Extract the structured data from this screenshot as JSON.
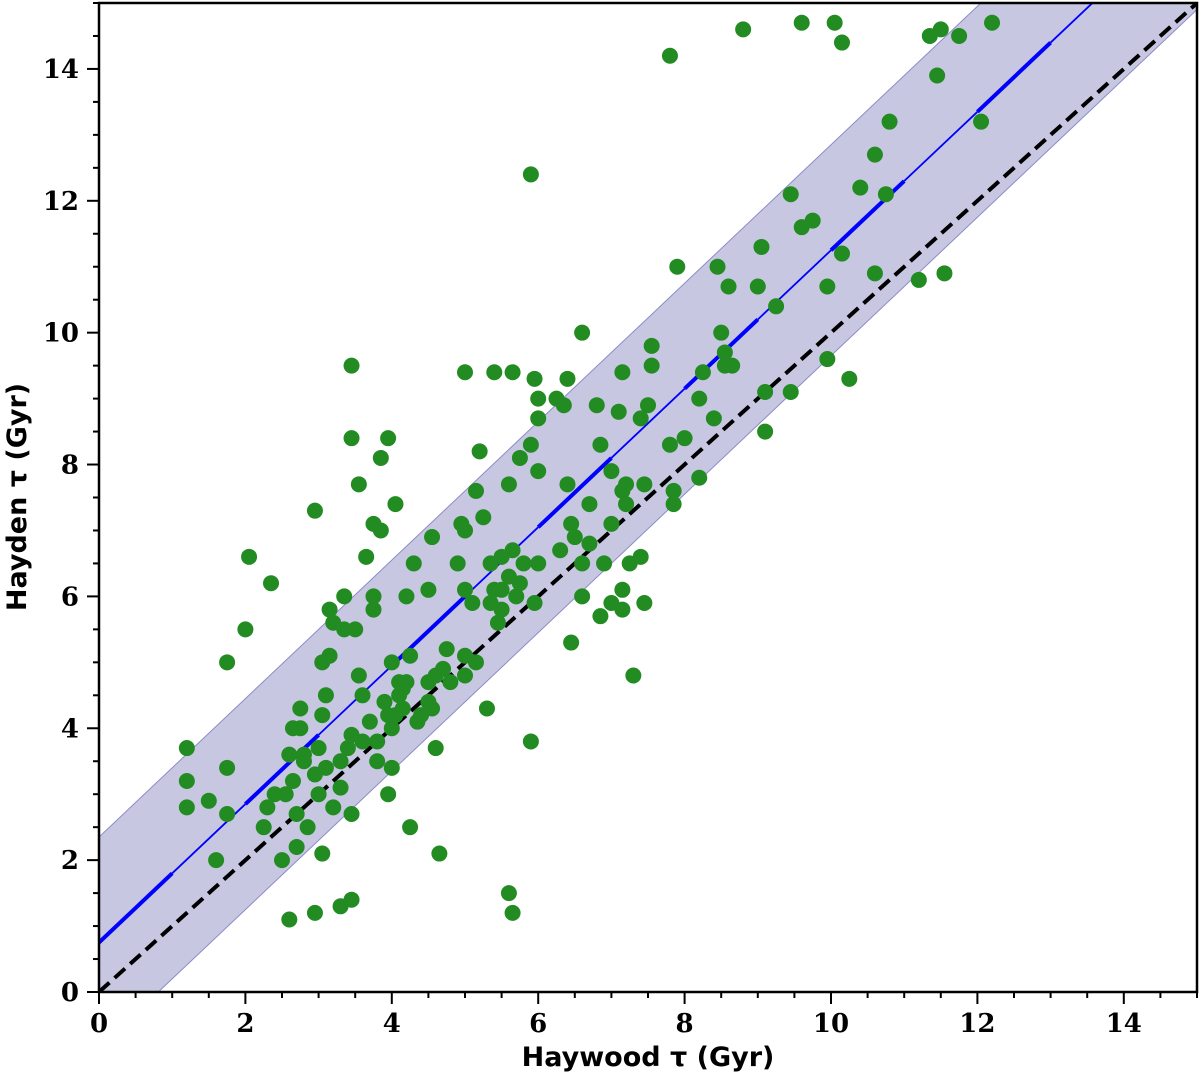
{
  "chart_data": {
    "type": "scatter",
    "title": "",
    "xlabel": "Haywood τ (Gyr)",
    "ylabel": "Hayden τ (Gyr)",
    "xlim": [
      0,
      15
    ],
    "ylim": [
      0,
      15
    ],
    "xticks": [
      "0",
      "2",
      "4",
      "6",
      "8",
      "10",
      "12",
      "14"
    ],
    "yticks": [
      "0",
      "2",
      "4",
      "6",
      "8",
      "10",
      "12",
      "14"
    ],
    "grid": false,
    "legend": "none",
    "colors": {
      "points": "#228B22",
      "fit_line": "#0000ff",
      "band": "#b4b4d8",
      "band_edge": "#8c8cc8",
      "identity": "#000000"
    },
    "fit_line": {
      "intercept": 0.75,
      "slope": 1.05,
      "style": "dashed, alternating thick/thin"
    },
    "band_halfwidth": 1.6,
    "identity_line": {
      "intercept": 0,
      "slope": 1,
      "style": "dashed"
    },
    "points": [
      [
        1.2,
        3.7
      ],
      [
        1.2,
        3.2
      ],
      [
        1.2,
        2.8
      ],
      [
        1.5,
        2.9
      ],
      [
        1.6,
        2.0
      ],
      [
        1.75,
        5.0
      ],
      [
        1.75,
        3.4
      ],
      [
        1.75,
        2.7
      ],
      [
        2.0,
        5.5
      ],
      [
        2.05,
        6.6
      ],
      [
        2.35,
        6.2
      ],
      [
        2.3,
        2.8
      ],
      [
        2.25,
        2.5
      ],
      [
        2.4,
        3.0
      ],
      [
        2.55,
        3.0
      ],
      [
        2.5,
        2.0
      ],
      [
        2.6,
        1.1
      ],
      [
        2.6,
        3.6
      ],
      [
        2.65,
        4.0
      ],
      [
        2.65,
        3.2
      ],
      [
        2.7,
        2.7
      ],
      [
        2.7,
        2.2
      ],
      [
        2.75,
        4.3
      ],
      [
        2.75,
        4.0
      ],
      [
        2.8,
        3.5
      ],
      [
        2.8,
        3.6
      ],
      [
        2.85,
        2.5
      ],
      [
        2.95,
        3.3
      ],
      [
        2.95,
        1.2
      ],
      [
        2.95,
        7.3
      ],
      [
        3.0,
        3.7
      ],
      [
        3.0,
        3.0
      ],
      [
        3.05,
        2.1
      ],
      [
        3.05,
        4.2
      ],
      [
        3.05,
        5.0
      ],
      [
        3.1,
        4.5
      ],
      [
        3.1,
        3.4
      ],
      [
        3.15,
        5.1
      ],
      [
        3.15,
        5.8
      ],
      [
        3.2,
        5.6
      ],
      [
        3.2,
        2.8
      ],
      [
        3.3,
        1.3
      ],
      [
        3.3,
        3.5
      ],
      [
        3.3,
        3.1
      ],
      [
        3.35,
        5.5
      ],
      [
        3.35,
        6.0
      ],
      [
        3.4,
        3.7
      ],
      [
        3.45,
        3.9
      ],
      [
        3.45,
        2.7
      ],
      [
        3.45,
        1.4
      ],
      [
        3.45,
        8.4
      ],
      [
        3.45,
        9.5
      ],
      [
        3.5,
        5.5
      ],
      [
        3.55,
        7.7
      ],
      [
        3.55,
        4.8
      ],
      [
        3.6,
        4.5
      ],
      [
        3.6,
        3.8
      ],
      [
        3.65,
        6.6
      ],
      [
        3.7,
        4.1
      ],
      [
        3.75,
        7.1
      ],
      [
        3.75,
        5.8
      ],
      [
        3.75,
        6.0
      ],
      [
        3.8,
        3.5
      ],
      [
        3.8,
        3.8
      ],
      [
        3.85,
        8.1
      ],
      [
        3.85,
        7.0
      ],
      [
        3.9,
        4.4
      ],
      [
        3.95,
        4.2
      ],
      [
        3.95,
        3.0
      ],
      [
        3.95,
        8.4
      ],
      [
        4.0,
        5.0
      ],
      [
        4.0,
        4.0
      ],
      [
        4.0,
        3.4
      ],
      [
        4.05,
        7.4
      ],
      [
        4.05,
        4.2
      ],
      [
        4.1,
        4.7
      ],
      [
        4.1,
        4.5
      ],
      [
        4.15,
        4.6
      ],
      [
        4.15,
        4.3
      ],
      [
        4.2,
        6.0
      ],
      [
        4.2,
        4.7
      ],
      [
        4.25,
        5.1
      ],
      [
        4.25,
        2.5
      ],
      [
        4.3,
        6.5
      ],
      [
        4.35,
        4.1
      ],
      [
        4.4,
        4.2
      ],
      [
        4.5,
        6.1
      ],
      [
        4.5,
        4.7
      ],
      [
        4.5,
        4.4
      ],
      [
        4.55,
        6.9
      ],
      [
        4.55,
        4.3
      ],
      [
        4.6,
        4.8
      ],
      [
        4.6,
        3.7
      ],
      [
        4.65,
        2.1
      ],
      [
        4.7,
        4.9
      ],
      [
        4.75,
        5.2
      ],
      [
        4.8,
        4.7
      ],
      [
        4.9,
        6.5
      ],
      [
        4.95,
        7.1
      ],
      [
        5.0,
        9.4
      ],
      [
        5.0,
        7.0
      ],
      [
        5.0,
        6.1
      ],
      [
        5.0,
        5.1
      ],
      [
        5.0,
        4.8
      ],
      [
        5.1,
        5.9
      ],
      [
        5.15,
        7.6
      ],
      [
        5.15,
        5.0
      ],
      [
        5.2,
        8.2
      ],
      [
        5.25,
        7.2
      ],
      [
        5.3,
        4.3
      ],
      [
        5.35,
        6.5
      ],
      [
        5.35,
        5.9
      ],
      [
        5.4,
        9.4
      ],
      [
        5.4,
        6.1
      ],
      [
        5.45,
        5.6
      ],
      [
        5.5,
        6.6
      ],
      [
        5.5,
        6.1
      ],
      [
        5.5,
        5.8
      ],
      [
        5.6,
        1.5
      ],
      [
        5.6,
        7.7
      ],
      [
        5.6,
        6.3
      ],
      [
        5.65,
        9.4
      ],
      [
        5.65,
        6.7
      ],
      [
        5.65,
        1.2
      ],
      [
        5.7,
        6.0
      ],
      [
        5.75,
        8.1
      ],
      [
        5.75,
        6.2
      ],
      [
        5.8,
        6.5
      ],
      [
        5.9,
        12.4
      ],
      [
        5.9,
        8.3
      ],
      [
        5.9,
        3.8
      ],
      [
        5.95,
        5.9
      ],
      [
        5.95,
        9.3
      ],
      [
        6.0,
        9.0
      ],
      [
        6.0,
        8.7
      ],
      [
        6.0,
        7.9
      ],
      [
        6.0,
        6.5
      ],
      [
        6.25,
        9.0
      ],
      [
        6.3,
        6.7
      ],
      [
        6.35,
        8.9
      ],
      [
        6.4,
        9.3
      ],
      [
        6.4,
        7.7
      ],
      [
        6.45,
        7.1
      ],
      [
        6.45,
        5.3
      ],
      [
        6.5,
        6.9
      ],
      [
        6.6,
        10.0
      ],
      [
        6.6,
        6.5
      ],
      [
        6.6,
        6.0
      ],
      [
        6.7,
        7.4
      ],
      [
        6.7,
        6.8
      ],
      [
        6.8,
        8.9
      ],
      [
        6.85,
        8.3
      ],
      [
        6.85,
        5.7
      ],
      [
        6.9,
        6.5
      ],
      [
        7.0,
        7.9
      ],
      [
        7.0,
        7.1
      ],
      [
        7.0,
        5.9
      ],
      [
        7.1,
        8.8
      ],
      [
        7.15,
        9.4
      ],
      [
        7.15,
        7.6
      ],
      [
        7.15,
        6.1
      ],
      [
        7.15,
        5.8
      ],
      [
        7.2,
        7.7
      ],
      [
        7.2,
        7.4
      ],
      [
        7.25,
        6.5
      ],
      [
        7.3,
        4.8
      ],
      [
        7.4,
        8.7
      ],
      [
        7.4,
        6.6
      ],
      [
        7.45,
        7.7
      ],
      [
        7.45,
        5.9
      ],
      [
        7.5,
        8.9
      ],
      [
        7.55,
        9.8
      ],
      [
        7.55,
        9.5
      ],
      [
        7.8,
        14.2
      ],
      [
        7.8,
        8.3
      ],
      [
        7.85,
        7.6
      ],
      [
        7.85,
        7.4
      ],
      [
        7.9,
        11.0
      ],
      [
        8.0,
        8.4
      ],
      [
        8.2,
        9.0
      ],
      [
        8.2,
        7.8
      ],
      [
        8.25,
        9.4
      ],
      [
        8.4,
        8.7
      ],
      [
        8.45,
        11.0
      ],
      [
        8.5,
        10.0
      ],
      [
        8.55,
        9.5
      ],
      [
        8.55,
        9.7
      ],
      [
        8.6,
        10.7
      ],
      [
        8.65,
        9.5
      ],
      [
        8.8,
        14.6
      ],
      [
        9.0,
        10.7
      ],
      [
        9.05,
        11.3
      ],
      [
        9.1,
        9.1
      ],
      [
        9.1,
        8.5
      ],
      [
        9.25,
        10.4
      ],
      [
        9.45,
        12.1
      ],
      [
        9.45,
        9.1
      ],
      [
        9.6,
        11.6
      ],
      [
        9.6,
        14.7
      ],
      [
        9.75,
        11.7
      ],
      [
        9.95,
        9.6
      ],
      [
        9.95,
        10.7
      ],
      [
        10.05,
        14.7
      ],
      [
        10.15,
        11.2
      ],
      [
        10.15,
        14.4
      ],
      [
        10.25,
        9.3
      ],
      [
        10.4,
        12.2
      ],
      [
        10.6,
        10.9
      ],
      [
        10.6,
        12.7
      ],
      [
        10.75,
        12.1
      ],
      [
        10.8,
        13.2
      ],
      [
        11.2,
        10.8
      ],
      [
        11.35,
        14.5
      ],
      [
        11.45,
        13.9
      ],
      [
        11.5,
        14.6
      ],
      [
        11.55,
        10.9
      ],
      [
        11.75,
        14.5
      ],
      [
        12.05,
        13.2
      ],
      [
        12.2,
        14.7
      ]
    ]
  }
}
